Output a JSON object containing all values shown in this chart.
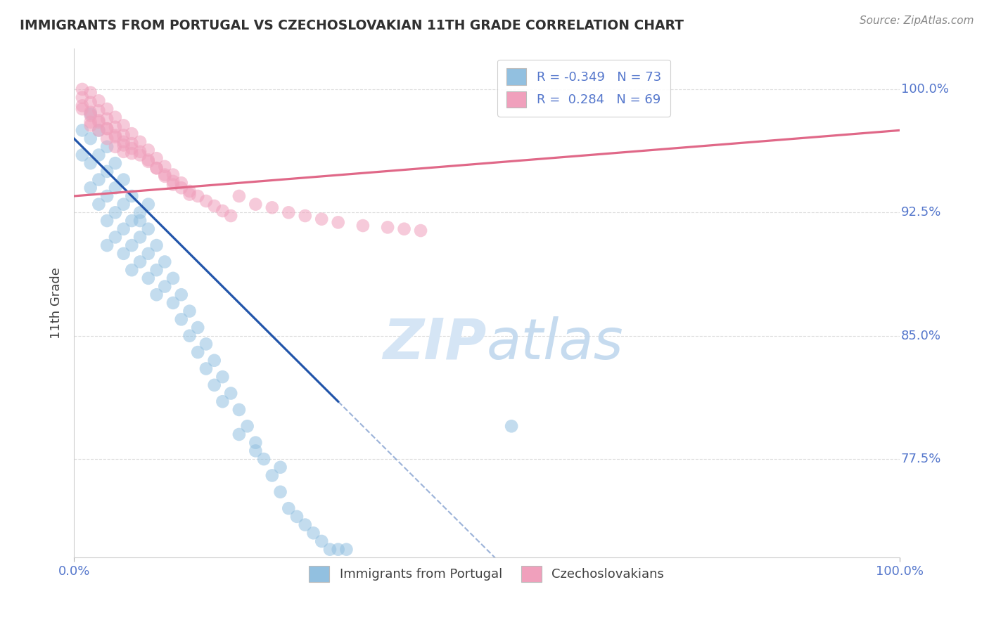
{
  "title": "IMMIGRANTS FROM PORTUGAL VS CZECHOSLOVAKIAN 11TH GRADE CORRELATION CHART",
  "source_text": "Source: ZipAtlas.com",
  "ylabel": "11th Grade",
  "xlim": [
    0.0,
    1.0
  ],
  "ylim": [
    0.715,
    1.025
  ],
  "blue_R": -0.349,
  "blue_N": 73,
  "pink_R": 0.284,
  "pink_N": 69,
  "blue_color": "#92C0E0",
  "pink_color": "#F0A0BC",
  "blue_line_color": "#2255AA",
  "pink_line_color": "#E06888",
  "title_color": "#303030",
  "source_color": "#888888",
  "axis_label_color": "#404040",
  "tick_label_color": "#5577CC",
  "grid_color": "#DDDDDD",
  "watermark_color": "#D5E5F5",
  "y_ticks": [
    0.775,
    0.85,
    0.925,
    1.0
  ],
  "y_labels": [
    "77.5%",
    "85.0%",
    "92.5%",
    "100.0%"
  ],
  "x_ticks": [
    0.0,
    1.0
  ],
  "x_labels": [
    "0.0%",
    "100.0%"
  ],
  "blue_scatter_x": [
    0.01,
    0.01,
    0.02,
    0.02,
    0.02,
    0.02,
    0.03,
    0.03,
    0.03,
    0.03,
    0.04,
    0.04,
    0.04,
    0.04,
    0.04,
    0.05,
    0.05,
    0.05,
    0.05,
    0.06,
    0.06,
    0.06,
    0.06,
    0.07,
    0.07,
    0.07,
    0.07,
    0.08,
    0.08,
    0.08,
    0.09,
    0.09,
    0.09,
    0.1,
    0.1,
    0.1,
    0.11,
    0.11,
    0.12,
    0.12,
    0.13,
    0.13,
    0.14,
    0.14,
    0.15,
    0.15,
    0.16,
    0.16,
    0.17,
    0.17,
    0.18,
    0.18,
    0.19,
    0.2,
    0.21,
    0.22,
    0.23,
    0.24,
    0.25,
    0.26,
    0.27,
    0.28,
    0.29,
    0.3,
    0.31,
    0.32,
    0.33,
    0.2,
    0.22,
    0.25,
    0.08,
    0.09,
    0.53
  ],
  "blue_scatter_y": [
    0.975,
    0.96,
    0.985,
    0.97,
    0.955,
    0.94,
    0.975,
    0.96,
    0.945,
    0.93,
    0.965,
    0.95,
    0.935,
    0.92,
    0.905,
    0.955,
    0.94,
    0.925,
    0.91,
    0.945,
    0.93,
    0.915,
    0.9,
    0.935,
    0.92,
    0.905,
    0.89,
    0.925,
    0.91,
    0.895,
    0.915,
    0.9,
    0.885,
    0.905,
    0.89,
    0.875,
    0.895,
    0.88,
    0.885,
    0.87,
    0.875,
    0.86,
    0.865,
    0.85,
    0.855,
    0.84,
    0.845,
    0.83,
    0.835,
    0.82,
    0.825,
    0.81,
    0.815,
    0.805,
    0.795,
    0.785,
    0.775,
    0.765,
    0.755,
    0.745,
    0.74,
    0.735,
    0.73,
    0.725,
    0.72,
    0.72,
    0.72,
    0.79,
    0.78,
    0.77,
    0.92,
    0.93,
    0.795
  ],
  "pink_scatter_x": [
    0.01,
    0.01,
    0.01,
    0.02,
    0.02,
    0.02,
    0.02,
    0.03,
    0.03,
    0.03,
    0.03,
    0.04,
    0.04,
    0.04,
    0.05,
    0.05,
    0.05,
    0.05,
    0.06,
    0.06,
    0.06,
    0.07,
    0.07,
    0.07,
    0.08,
    0.08,
    0.09,
    0.09,
    0.1,
    0.1,
    0.11,
    0.11,
    0.12,
    0.12,
    0.13,
    0.14,
    0.15,
    0.16,
    0.17,
    0.18,
    0.19,
    0.2,
    0.22,
    0.24,
    0.26,
    0.28,
    0.3,
    0.32,
    0.35,
    0.38,
    0.4,
    0.42,
    0.01,
    0.02,
    0.03,
    0.04,
    0.05,
    0.06,
    0.07,
    0.08,
    0.09,
    0.1,
    0.11,
    0.12,
    0.13,
    0.14,
    0.02,
    0.04,
    0.06
  ],
  "pink_scatter_y": [
    1.0,
    0.995,
    0.99,
    0.998,
    0.992,
    0.986,
    0.98,
    0.993,
    0.987,
    0.981,
    0.975,
    0.988,
    0.982,
    0.976,
    0.983,
    0.977,
    0.971,
    0.965,
    0.978,
    0.972,
    0.966,
    0.973,
    0.967,
    0.961,
    0.968,
    0.962,
    0.963,
    0.957,
    0.958,
    0.952,
    0.953,
    0.947,
    0.948,
    0.942,
    0.943,
    0.938,
    0.935,
    0.932,
    0.929,
    0.926,
    0.923,
    0.935,
    0.93,
    0.928,
    0.925,
    0.923,
    0.921,
    0.919,
    0.917,
    0.916,
    0.915,
    0.914,
    0.988,
    0.984,
    0.98,
    0.976,
    0.972,
    0.968,
    0.964,
    0.96,
    0.956,
    0.952,
    0.948,
    0.944,
    0.94,
    0.936,
    0.978,
    0.97,
    0.962
  ]
}
